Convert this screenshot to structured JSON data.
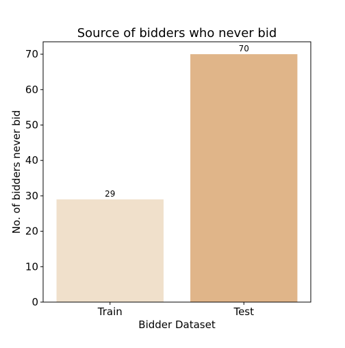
{
  "chart_data": {
    "type": "bar",
    "title": "Source of bidders who never bid",
    "xlabel": "Bidder Dataset",
    "ylabel": "No. of bidders never bid",
    "categories": [
      "Train",
      "Test"
    ],
    "values": [
      29,
      70
    ],
    "data_labels": [
      "29",
      "70"
    ],
    "colors": [
      "#f0e0cb",
      "#e0b589"
    ],
    "ylim": [
      0,
      73.5
    ],
    "yticks": [
      0,
      10,
      20,
      30,
      40,
      50,
      60,
      70
    ],
    "grid": false,
    "legend": "none"
  }
}
